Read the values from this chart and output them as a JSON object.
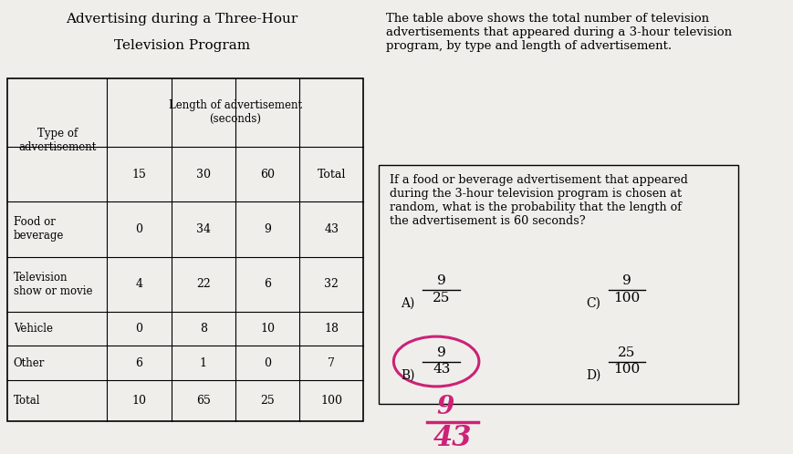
{
  "title_line1": "Advertising during a Three-Hour",
  "title_line2": "Television Program",
  "col_headers": [
    "15",
    "30",
    "60",
    "Total"
  ],
  "row_labels": [
    "Food or\nbeverage",
    "Television\nshow or movie",
    "Vehicle",
    "Other",
    "Total"
  ],
  "table_data": [
    [
      0,
      34,
      9,
      43
    ],
    [
      4,
      22,
      6,
      32
    ],
    [
      0,
      8,
      10,
      18
    ],
    [
      6,
      1,
      0,
      7
    ],
    [
      10,
      65,
      25,
      100
    ]
  ],
  "right_text_top": "The table above shows the total number of television\nadvertisements that appeared during a 3-hour television\nprogram, by type and length of advertisement.",
  "question_text": "If a food or beverage advertisement that appeared\nduring the 3-hour television program is chosen at\nrandom, what is the probability that the length of\nthe advertisement is 60 seconds?",
  "answer_A_num": "9",
  "answer_A_den": "25",
  "answer_B_num": "9",
  "answer_B_den": "43",
  "answer_C_num": "9",
  "answer_C_den": "100",
  "answer_D_num": "25",
  "answer_D_den": "100",
  "bg_color": "#f0eeeb",
  "circle_color": "#cc2277",
  "handwriting_color": "#cc2277"
}
